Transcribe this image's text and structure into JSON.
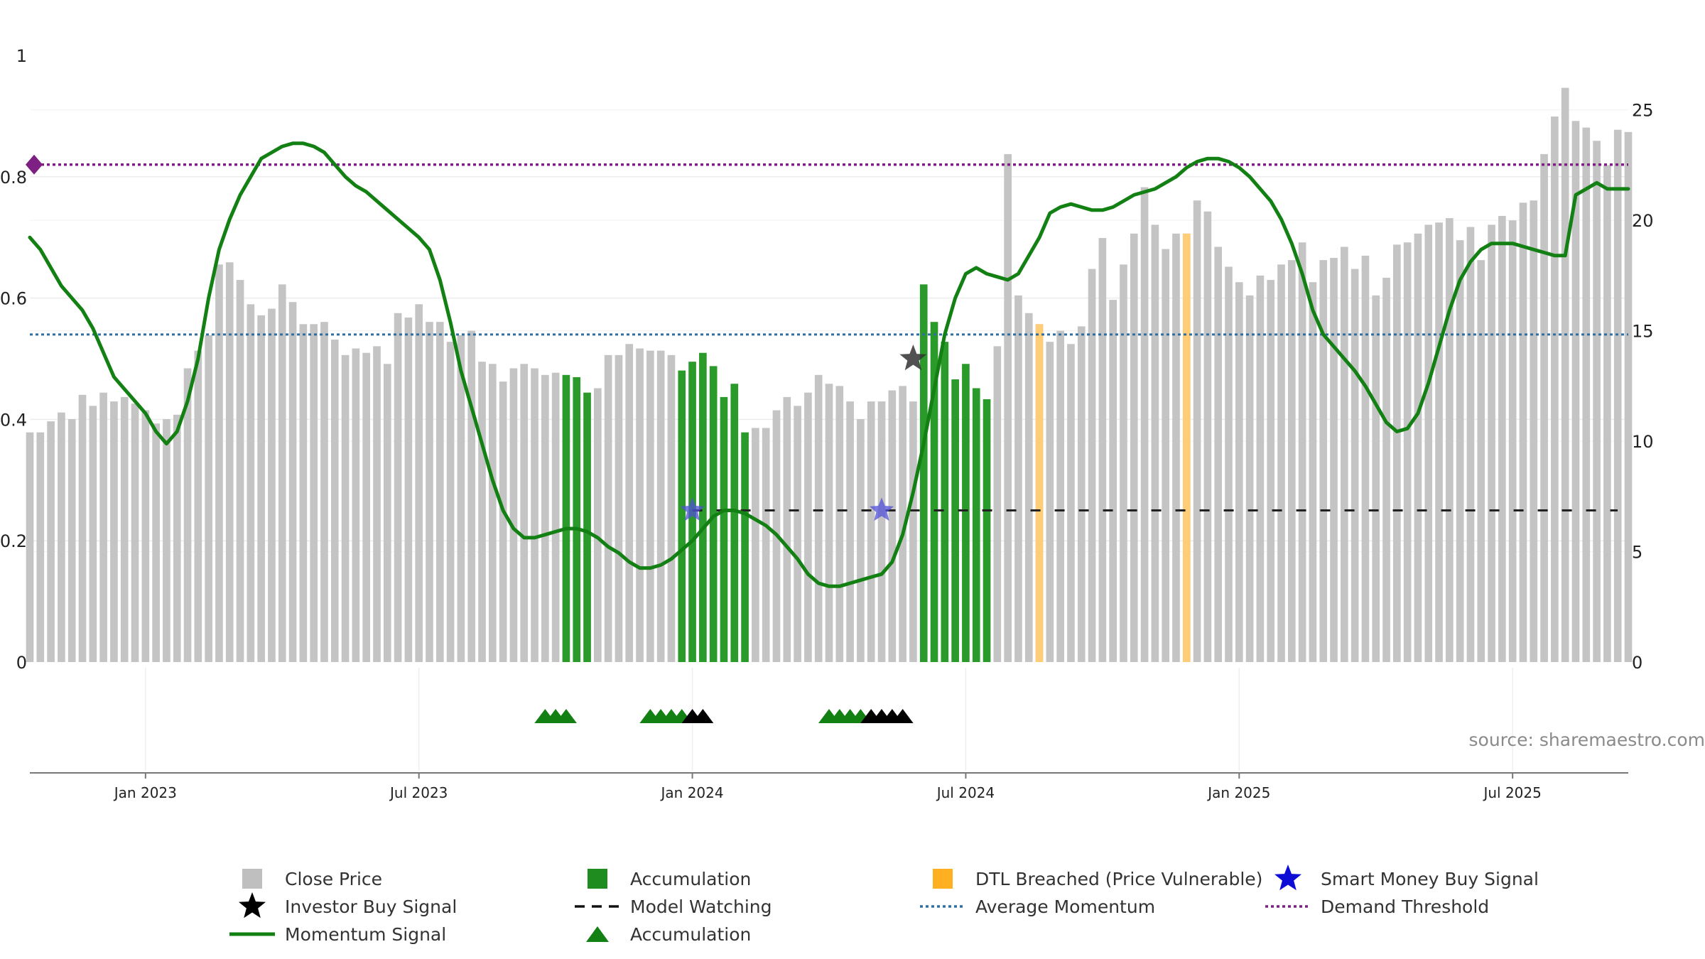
{
  "chart_data": {
    "type": "bar",
    "source": "source: sharemaestro.com",
    "left_axis": {
      "ticks": [
        "0",
        "0.2",
        "0.4",
        "0.6",
        "0.8",
        "1"
      ],
      "ylim": [
        0,
        1
      ]
    },
    "right_axis": {
      "ticks": [
        "0",
        "5",
        "10",
        "15",
        "20",
        "25"
      ],
      "ylim": [
        0,
        27.3
      ]
    },
    "x_ticks": [
      {
        "label": "Jan 2023",
        "index": 11
      },
      {
        "label": "Jul 2023",
        "index": 37
      },
      {
        "label": "Jan 2024",
        "index": 63
      },
      {
        "label": "Jul 2024",
        "index": 89
      },
      {
        "label": "Jan 2025",
        "index": 115
      },
      {
        "label": "Jul 2025",
        "index": 141
      }
    ],
    "close_price": [
      10.4,
      10.4,
      10.9,
      11.3,
      11.0,
      12.1,
      11.6,
      12.2,
      11.8,
      12.0,
      11.7,
      11.4,
      10.8,
      11.0,
      11.2,
      13.3,
      14.1,
      14.8,
      18.0,
      18.1,
      17.3,
      16.2,
      15.7,
      16.0,
      17.1,
      16.3,
      15.3,
      15.3,
      15.4,
      14.6,
      13.9,
      14.2,
      14.0,
      14.3,
      13.5,
      15.8,
      15.6,
      16.2,
      15.4,
      15.4,
      14.5,
      14.8,
      15.0,
      13.6,
      13.5,
      12.7,
      13.3,
      13.5,
      13.3,
      13.0,
      13.1,
      13.0,
      12.9,
      12.2,
      12.4,
      13.9,
      13.9,
      14.4,
      14.2,
      14.1,
      14.1,
      13.9,
      13.2,
      13.6,
      14.0,
      13.4,
      12.0,
      12.6,
      10.4,
      10.6,
      10.6,
      11.4,
      12.0,
      11.6,
      12.2,
      13.0,
      12.6,
      12.5,
      11.8,
      11.0,
      11.8,
      11.8,
      12.3,
      12.5,
      11.8,
      17.1,
      15.4,
      14.5,
      12.8,
      13.5,
      12.4,
      11.9,
      14.3,
      23.0,
      16.6,
      15.8,
      15.3,
      14.5,
      15.0,
      14.4,
      15.2,
      17.8,
      19.2,
      16.4,
      18.0,
      19.4,
      21.5,
      19.8,
      18.7,
      19.4,
      19.4,
      20.9,
      20.4,
      18.8,
      17.9,
      17.2,
      16.6,
      17.5,
      17.3,
      18.0,
      18.2,
      19.0,
      17.2,
      18.2,
      18.3,
      18.8,
      17.8,
      18.4,
      16.6,
      17.4,
      18.9,
      19.0,
      19.4,
      19.8,
      19.9,
      20.1,
      19.1,
      19.7,
      18.2,
      19.8,
      20.2,
      20.0,
      20.8,
      20.9,
      23.0,
      24.7,
      26.0,
      24.5,
      24.2,
      23.6,
      22.5,
      24.1,
      24.0
    ],
    "bar_state": "nnnnnnnnnnnnnnnnnnnnnnnnnnnnnnnnnnnnnnnnnnnnnnnnnnnaaannnnnnnnaaaaaaannnnnnnnnnnnnnnnaaaaaaannnnnnnnnnnnnnnnnnnnnnnnnnnnnnnnnnnnnnnnnnnnnnnnnnnnnnnnnnnnnnnnnnnnnnnnnnddddddnd",
    "breached_indices": [
      96,
      110
    ],
    "momentum": [
      [
        0,
        0.7
      ],
      [
        1,
        0.68
      ],
      [
        2,
        0.65
      ],
      [
        3,
        0.62
      ],
      [
        4,
        0.6
      ],
      [
        5,
        0.58
      ],
      [
        6,
        0.55
      ],
      [
        7,
        0.51
      ],
      [
        8,
        0.47
      ],
      [
        9,
        0.45
      ],
      [
        10,
        0.43
      ],
      [
        11,
        0.41
      ],
      [
        12,
        0.38
      ],
      [
        13,
        0.36
      ],
      [
        14,
        0.38
      ],
      [
        15,
        0.43
      ],
      [
        16,
        0.5
      ],
      [
        17,
        0.6
      ],
      [
        18,
        0.68
      ],
      [
        19,
        0.73
      ],
      [
        20,
        0.77
      ],
      [
        21,
        0.8
      ],
      [
        22,
        0.83
      ],
      [
        23,
        0.84
      ],
      [
        24,
        0.85
      ],
      [
        25,
        0.855
      ],
      [
        26,
        0.855
      ],
      [
        27,
        0.85
      ],
      [
        28,
        0.84
      ],
      [
        29,
        0.82
      ],
      [
        30,
        0.8
      ],
      [
        31,
        0.785
      ],
      [
        32,
        0.775
      ],
      [
        33,
        0.76
      ],
      [
        34,
        0.745
      ],
      [
        35,
        0.73
      ],
      [
        36,
        0.715
      ],
      [
        37,
        0.7
      ],
      [
        38,
        0.68
      ],
      [
        39,
        0.63
      ],
      [
        40,
        0.56
      ],
      [
        41,
        0.48
      ],
      [
        42,
        0.42
      ],
      [
        43,
        0.36
      ],
      [
        44,
        0.3
      ],
      [
        45,
        0.25
      ],
      [
        46,
        0.22
      ],
      [
        47,
        0.205
      ],
      [
        48,
        0.205
      ],
      [
        49,
        0.21
      ],
      [
        50,
        0.215
      ],
      [
        51,
        0.22
      ],
      [
        52,
        0.22
      ],
      [
        53,
        0.215
      ],
      [
        54,
        0.205
      ],
      [
        55,
        0.19
      ],
      [
        56,
        0.18
      ],
      [
        57,
        0.165
      ],
      [
        58,
        0.155
      ],
      [
        59,
        0.155
      ],
      [
        60,
        0.16
      ],
      [
        61,
        0.17
      ],
      [
        62,
        0.185
      ],
      [
        63,
        0.2
      ],
      [
        64,
        0.22
      ],
      [
        65,
        0.24
      ],
      [
        66,
        0.25
      ],
      [
        67,
        0.25
      ],
      [
        68,
        0.245
      ],
      [
        69,
        0.235
      ],
      [
        70,
        0.225
      ],
      [
        71,
        0.21
      ],
      [
        72,
        0.19
      ],
      [
        73,
        0.17
      ],
      [
        74,
        0.145
      ],
      [
        75,
        0.13
      ],
      [
        76,
        0.125
      ],
      [
        77,
        0.125
      ],
      [
        78,
        0.13
      ],
      [
        79,
        0.135
      ],
      [
        80,
        0.14
      ],
      [
        81,
        0.145
      ],
      [
        82,
        0.165
      ],
      [
        83,
        0.21
      ],
      [
        84,
        0.28
      ],
      [
        85,
        0.36
      ],
      [
        86,
        0.45
      ],
      [
        87,
        0.54
      ],
      [
        88,
        0.6
      ],
      [
        89,
        0.64
      ],
      [
        90,
        0.65
      ],
      [
        91,
        0.64
      ],
      [
        92,
        0.635
      ],
      [
        93,
        0.63
      ],
      [
        94,
        0.64
      ],
      [
        95,
        0.67
      ],
      [
        96,
        0.7
      ],
      [
        97,
        0.74
      ],
      [
        98,
        0.75
      ],
      [
        99,
        0.755
      ],
      [
        100,
        0.75
      ],
      [
        101,
        0.745
      ],
      [
        102,
        0.745
      ],
      [
        103,
        0.75
      ],
      [
        104,
        0.76
      ],
      [
        105,
        0.77
      ],
      [
        106,
        0.775
      ],
      [
        107,
        0.78
      ],
      [
        108,
        0.79
      ],
      [
        109,
        0.8
      ],
      [
        110,
        0.815
      ],
      [
        111,
        0.825
      ],
      [
        112,
        0.83
      ],
      [
        113,
        0.83
      ],
      [
        114,
        0.825
      ],
      [
        115,
        0.815
      ],
      [
        116,
        0.8
      ],
      [
        117,
        0.78
      ],
      [
        118,
        0.76
      ],
      [
        119,
        0.73
      ],
      [
        120,
        0.69
      ],
      [
        121,
        0.64
      ],
      [
        122,
        0.58
      ],
      [
        123,
        0.54
      ],
      [
        124,
        0.52
      ],
      [
        125,
        0.5
      ],
      [
        126,
        0.48
      ],
      [
        127,
        0.455
      ],
      [
        128,
        0.425
      ],
      [
        129,
        0.395
      ],
      [
        130,
        0.38
      ],
      [
        131,
        0.385
      ],
      [
        132,
        0.41
      ],
      [
        133,
        0.46
      ],
      [
        134,
        0.52
      ],
      [
        135,
        0.58
      ],
      [
        136,
        0.63
      ],
      [
        137,
        0.66
      ],
      [
        138,
        0.68
      ],
      [
        139,
        0.69
      ],
      [
        140,
        0.69
      ],
      [
        141,
        0.69
      ],
      [
        142,
        0.685
      ],
      [
        143,
        0.68
      ],
      [
        144,
        0.675
      ],
      [
        145,
        0.67
      ],
      [
        146,
        0.67
      ],
      [
        147,
        0.77
      ],
      [
        148,
        0.78
      ],
      [
        149,
        0.79
      ],
      [
        150,
        0.78
      ],
      [
        151,
        0.78
      ],
      [
        152,
        0.78
      ]
    ],
    "average_momentum": 0.54,
    "demand_threshold": 0.82,
    "model_watching_from_index": 63,
    "model_watching_level": 0.25,
    "smart_money_signals": [
      [
        63,
        0.25
      ],
      [
        81,
        0.25
      ]
    ],
    "investor_signals": [
      [
        84,
        0.5
      ]
    ],
    "markers_row": {
      "green": [
        49,
        50,
        51,
        59,
        60,
        61,
        62,
        76,
        77,
        78,
        79
      ],
      "black": [
        63,
        64,
        80,
        81,
        82,
        83
      ]
    },
    "colors": {
      "close_price": "#c4c4c4",
      "accumulation": "#2a9a2a",
      "breached": "#ffcd78",
      "momentum": "#138013",
      "average_momentum": "#2f6fa0",
      "demand_threshold": "#7d1f83",
      "smart_money": "#5050d8",
      "model_watching": "#222222"
    },
    "legend": [
      {
        "label": "Close Price",
        "symbol": "gray-square"
      },
      {
        "label": "Accumulation",
        "symbol": "green-square"
      },
      {
        "label": "DTL Breached (Price Vulnerable)",
        "symbol": "orange-square"
      },
      {
        "label": "Smart Money Buy Signal",
        "symbol": "blue-star"
      },
      {
        "label": "Investor Buy Signal",
        "symbol": "black-star"
      },
      {
        "label": "Model Watching",
        "symbol": "dash-line"
      },
      {
        "label": "Average Momentum",
        "symbol": "dotted-blue-line"
      },
      {
        "label": "Demand Threshold",
        "symbol": "dotted-purple-line"
      },
      {
        "label": "Momentum Signal",
        "symbol": "green-line"
      },
      {
        "label": "Accumulation",
        "symbol": "green-triangle"
      }
    ]
  }
}
